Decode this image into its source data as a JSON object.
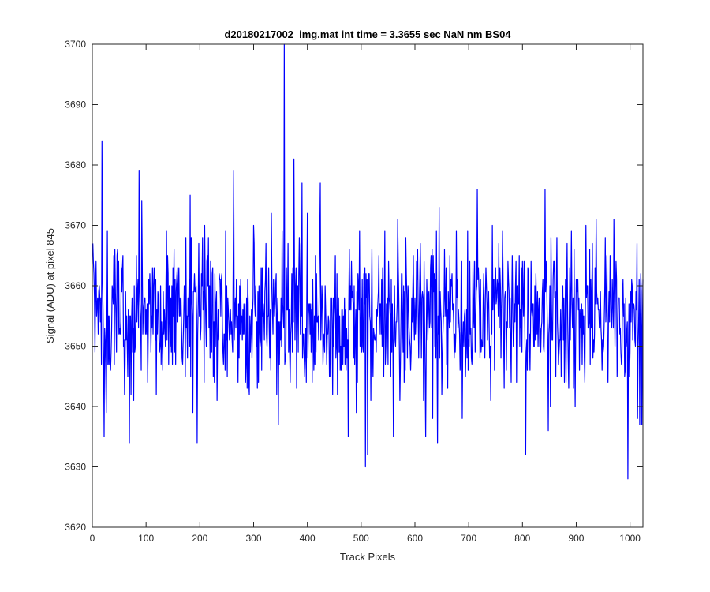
{
  "chart_data": {
    "type": "line",
    "title": "d20180217002_img.mat int time = 3.3655 sec  NaN nm BS04",
    "xlabel": "Track Pixels",
    "ylabel": "Signal (ADU) at pixel 845",
    "xlim": [
      0,
      1024
    ],
    "ylim": [
      3620,
      3700
    ],
    "xticks": [
      0,
      100,
      200,
      300,
      400,
      500,
      600,
      700,
      800,
      900,
      1000
    ],
    "yticks": [
      3620,
      3630,
      3640,
      3650,
      3660,
      3670,
      3680,
      3690,
      3700
    ],
    "grid": false,
    "legend": "none",
    "series": [
      {
        "color": "#0000ff",
        "n_points": 1024,
        "mean": 3655,
        "std": 6.5,
        "min": 3628,
        "max": 3700,
        "values_at_x": {
          "18": 3684,
          "22": 3635,
          "26": 3639,
          "69": 3634,
          "87": 3679,
          "195": 3634,
          "263": 3679,
          "300": 3670,
          "346": 3637,
          "357": 3700,
          "375": 3681,
          "476": 3635,
          "508": 3630,
          "512": 3632,
          "560": 3635,
          "620": 3635,
          "716": 3676,
          "806": 3632,
          "842": 3676,
          "996": 3628,
          "1022": 3637
        }
      }
    ]
  }
}
